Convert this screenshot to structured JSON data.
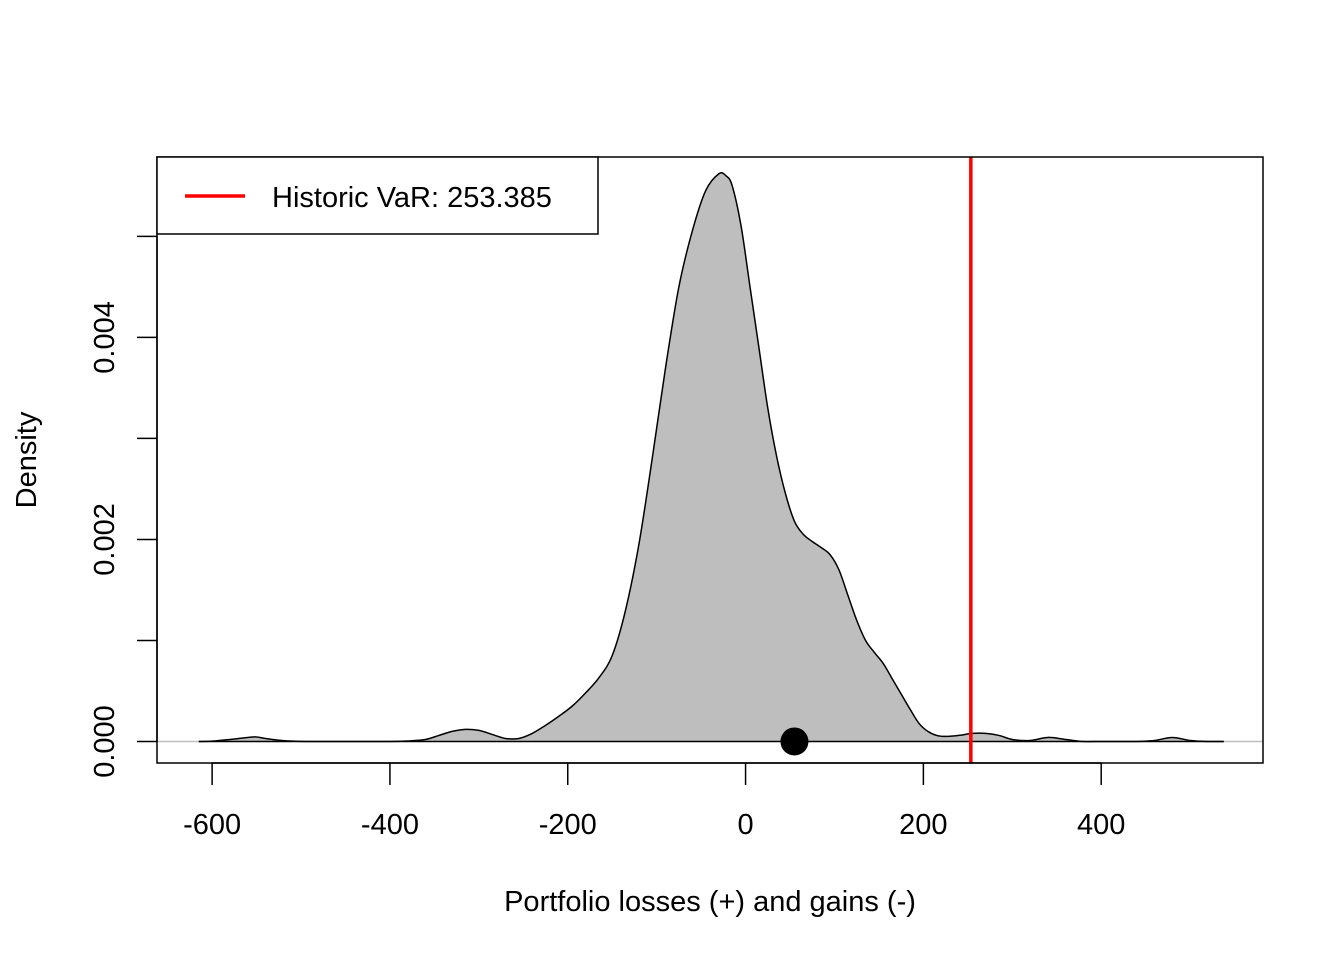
{
  "chart_data": {
    "type": "area",
    "xlabel": "Portfolio losses (+) and gains (-)",
    "ylabel": "Density",
    "xlim": [
      -662,
      582
    ],
    "ylim": [
      -0.000213,
      0.005786
    ],
    "x_ticks": [
      -600,
      -400,
      -200,
      0,
      200,
      400
    ],
    "y_ticks": [
      0,
      0.001,
      0.002,
      0.003,
      0.004,
      0.005
    ],
    "y_tick_labels": {
      "0": "0.000",
      "0.002": "0.002",
      "0.004": "0.004"
    },
    "grid": false,
    "legend_position": "top-left",
    "density": {
      "x": [
        -615,
        -600,
        -580,
        -560,
        -550,
        -540,
        -520,
        -500,
        -480,
        -450,
        -420,
        -400,
        -380,
        -360,
        -345,
        -330,
        -315,
        -300,
        -285,
        -270,
        -255,
        -240,
        -225,
        -210,
        -195,
        -180,
        -165,
        -150,
        -135,
        -120,
        -105,
        -90,
        -75,
        -60,
        -45,
        -30,
        -22,
        -15,
        -5,
        5,
        15,
        25,
        35,
        45,
        55,
        65,
        75,
        85,
        95,
        105,
        115,
        125,
        135,
        145,
        155,
        165,
        175,
        185,
        195,
        205,
        215,
        225,
        240,
        255,
        270,
        285,
        300,
        320,
        340,
        360,
        380,
        400,
        420,
        440,
        460,
        480,
        500,
        520,
        538
      ],
      "y": [
        0,
        3e-06,
        2e-05,
        4e-05,
        4.5e-05,
        3e-05,
        8e-06,
        1e-06,
        0,
        0,
        0,
        0,
        5e-06,
        2e-05,
        6e-05,
        0.0001,
        0.00012,
        0.00011,
        7e-05,
        3e-05,
        3e-05,
        8e-05,
        0.00016,
        0.00025,
        0.00035,
        0.00048,
        0.00063,
        0.00085,
        0.0013,
        0.00195,
        0.0028,
        0.0037,
        0.0045,
        0.00505,
        0.00545,
        0.00562,
        0.0056,
        0.0055,
        0.0051,
        0.0045,
        0.0039,
        0.0033,
        0.00282,
        0.00245,
        0.00218,
        0.00205,
        0.00198,
        0.00192,
        0.00185,
        0.0017,
        0.00145,
        0.0012,
        0.001,
        0.00088,
        0.00077,
        0.00062,
        0.00047,
        0.00032,
        0.00018,
        0.0001,
        6e-05,
        5e-05,
        6e-05,
        8e-05,
        8e-05,
        6e-05,
        2e-05,
        1e-05,
        4e-05,
        2e-05,
        0,
        0,
        0,
        0,
        1e-05,
        4e-05,
        1e-05,
        0,
        0
      ]
    },
    "fill_color": "#bebebe",
    "outline_color": "#000000",
    "var_line": {
      "value": 253.385,
      "color": "#ff0000"
    },
    "marker_point": {
      "x": 55,
      "y": 0,
      "color": "#000000"
    },
    "legend": {
      "label": "Historic VaR: 253.385",
      "line_color": "#ff0000"
    }
  }
}
